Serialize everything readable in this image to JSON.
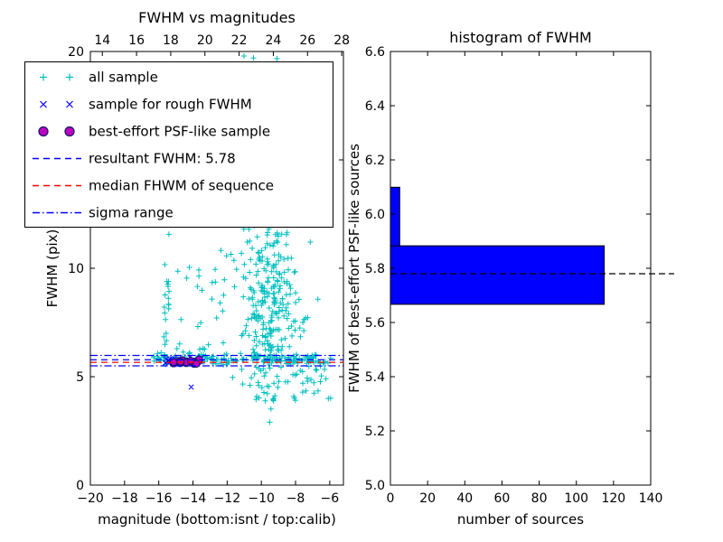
{
  "figure": {
    "background": "#ffffff",
    "seed": 20
  },
  "chart_data": [
    {
      "type": "scatter",
      "title": "FWHM vs magnitudes",
      "xlabel": "magnitude (bottom:isnt / top:calib)",
      "ylabel": "FWHM (pix)",
      "xlim": [
        -20,
        -5.2
      ],
      "ylim": [
        0,
        20
      ],
      "x_ticks": [
        -20,
        -18,
        -16,
        -14,
        -12,
        -10,
        -8,
        -6
      ],
      "x_tick_labels": [
        "−20",
        "−18",
        "−16",
        "−14",
        "−12",
        "−10",
        "−8",
        "−6"
      ],
      "top_axis": {
        "lim": [
          13.3,
          28.1
        ],
        "ticks": [
          14,
          16,
          18,
          20,
          22,
          24,
          26,
          28
        ],
        "labels": [
          "14",
          "16",
          "18",
          "20",
          "22",
          "24",
          "26",
          "28"
        ]
      },
      "y_ticks": [
        0,
        5,
        10,
        15,
        20
      ],
      "y_tick_labels": [
        "0",
        "5",
        "10",
        "15",
        "20"
      ],
      "series": [
        {
          "name": "all sample",
          "marker": "plus",
          "color": "#00bfbf",
          "clusters": [
            {
              "n": 210,
              "x": [
                "normal",
                -9.55,
                0.7
              ],
              "y": [
                "normal",
                8.2,
                1.9
              ]
            },
            {
              "n": 90,
              "x": [
                "normal",
                -9.5,
                0.85
              ],
              "y": [
                "uniform",
                4.5,
                19.5
              ]
            },
            {
              "n": 150,
              "x": [
                "uniform",
                -16.3,
                -6.1
              ],
              "y": [
                "normal",
                5.82,
                0.13
              ]
            },
            {
              "n": 22,
              "x": [
                "normal",
                -15.55,
                0.1
              ],
              "y": [
                "uniform",
                5.9,
                11.8
              ]
            },
            {
              "n": 30,
              "x": [
                "uniform",
                -15.2,
                -11.0
              ],
              "y": [
                "uniform",
                6.1,
                11.5
              ]
            },
            {
              "n": 55,
              "x": [
                "uniform",
                -10.4,
                -5.9
              ],
              "y": [
                "uniform",
                3.8,
                6.0
              ]
            },
            {
              "n": 10,
              "x": [
                "uniform",
                -12.3,
                -9.0
              ],
              "y": [
                "uniform",
                18.2,
                20.0
              ]
            },
            {
              "n": 8,
              "x": [
                "uniform",
                -8.2,
                -6.2
              ],
              "y": [
                "uniform",
                6.0,
                9.5
              ]
            }
          ]
        },
        {
          "name": "sample for rough FWHM",
          "marker": "x",
          "color": "#0000ff",
          "clusters": [
            {
              "n": 26,
              "x": [
                "uniform",
                -15.75,
                -13.45
              ],
              "y": [
                "normal",
                5.74,
                0.05
              ]
            }
          ],
          "points": [
            [
              -14.1,
              4.52
            ]
          ]
        },
        {
          "name": "best-effort PSF-like sample",
          "marker": "circle",
          "color": "#bf00bf",
          "edge": "#191970",
          "clusters": [
            {
              "n": 24,
              "x": [
                "uniform",
                -15.35,
                -13.55
              ],
              "y": [
                "normal",
                5.66,
                0.05
              ]
            }
          ],
          "points": []
        }
      ],
      "lines": [
        {
          "name": "resultant FWHM: 5.78",
          "y": 5.78,
          "color": "#0000ff",
          "style": "dashed"
        },
        {
          "name": "median FHWM of sequence",
          "y": 5.66,
          "color": "#ff0000",
          "style": "dashed"
        },
        {
          "name": "sigma range upper",
          "y": 5.98,
          "color": "#0000ff",
          "style": "dashdot"
        },
        {
          "name": "sigma range lower",
          "y": 5.5,
          "color": "#0000ff",
          "style": "dashdot"
        }
      ],
      "legend": [
        {
          "label": "all sample",
          "swatch": "plus",
          "color": "#00bfbf"
        },
        {
          "label": "sample for rough FWHM",
          "swatch": "x",
          "color": "#0000ff"
        },
        {
          "label": "best-effort PSF-like sample",
          "swatch": "circle",
          "color": "#bf00bf",
          "edge": "#191970"
        },
        {
          "label": "resultant FWHM: 5.78",
          "swatch": "dashed",
          "color": "#0000ff"
        },
        {
          "label": "median FHWM of sequence",
          "swatch": "dashed",
          "color": "#ff0000"
        },
        {
          "label": "sigma range",
          "swatch": "dashdot",
          "color": "#0000ff"
        }
      ]
    },
    {
      "type": "bar",
      "orientation": "horizontal",
      "title": "histogram of FWHM",
      "xlabel": "number of sources",
      "ylabel": "FWHM of best-effort PSF-like sources",
      "xlim": [
        0,
        140
      ],
      "ylim": [
        5.0,
        6.6
      ],
      "x_ticks": [
        0,
        20,
        40,
        60,
        80,
        100,
        120,
        140
      ],
      "x_tick_labels": [
        "0",
        "20",
        "40",
        "60",
        "80",
        "100",
        "120",
        "140"
      ],
      "y_ticks": [
        5.0,
        5.2,
        5.4,
        5.6,
        5.8,
        6.0,
        6.2,
        6.4,
        6.6
      ],
      "y_tick_labels": [
        "5.0",
        "5.2",
        "5.4",
        "5.6",
        "5.8",
        "6.0",
        "6.2",
        "6.4",
        "6.6"
      ],
      "bins": {
        "edges": [
          5.667,
          5.883,
          6.099
        ],
        "counts": [
          115,
          5
        ]
      },
      "bar_color": "#0000ff",
      "bar_edge": "#000000",
      "line": {
        "name": "resultant FWHM",
        "y": 5.78,
        "color": "#000000",
        "style": "dashed"
      }
    }
  ]
}
